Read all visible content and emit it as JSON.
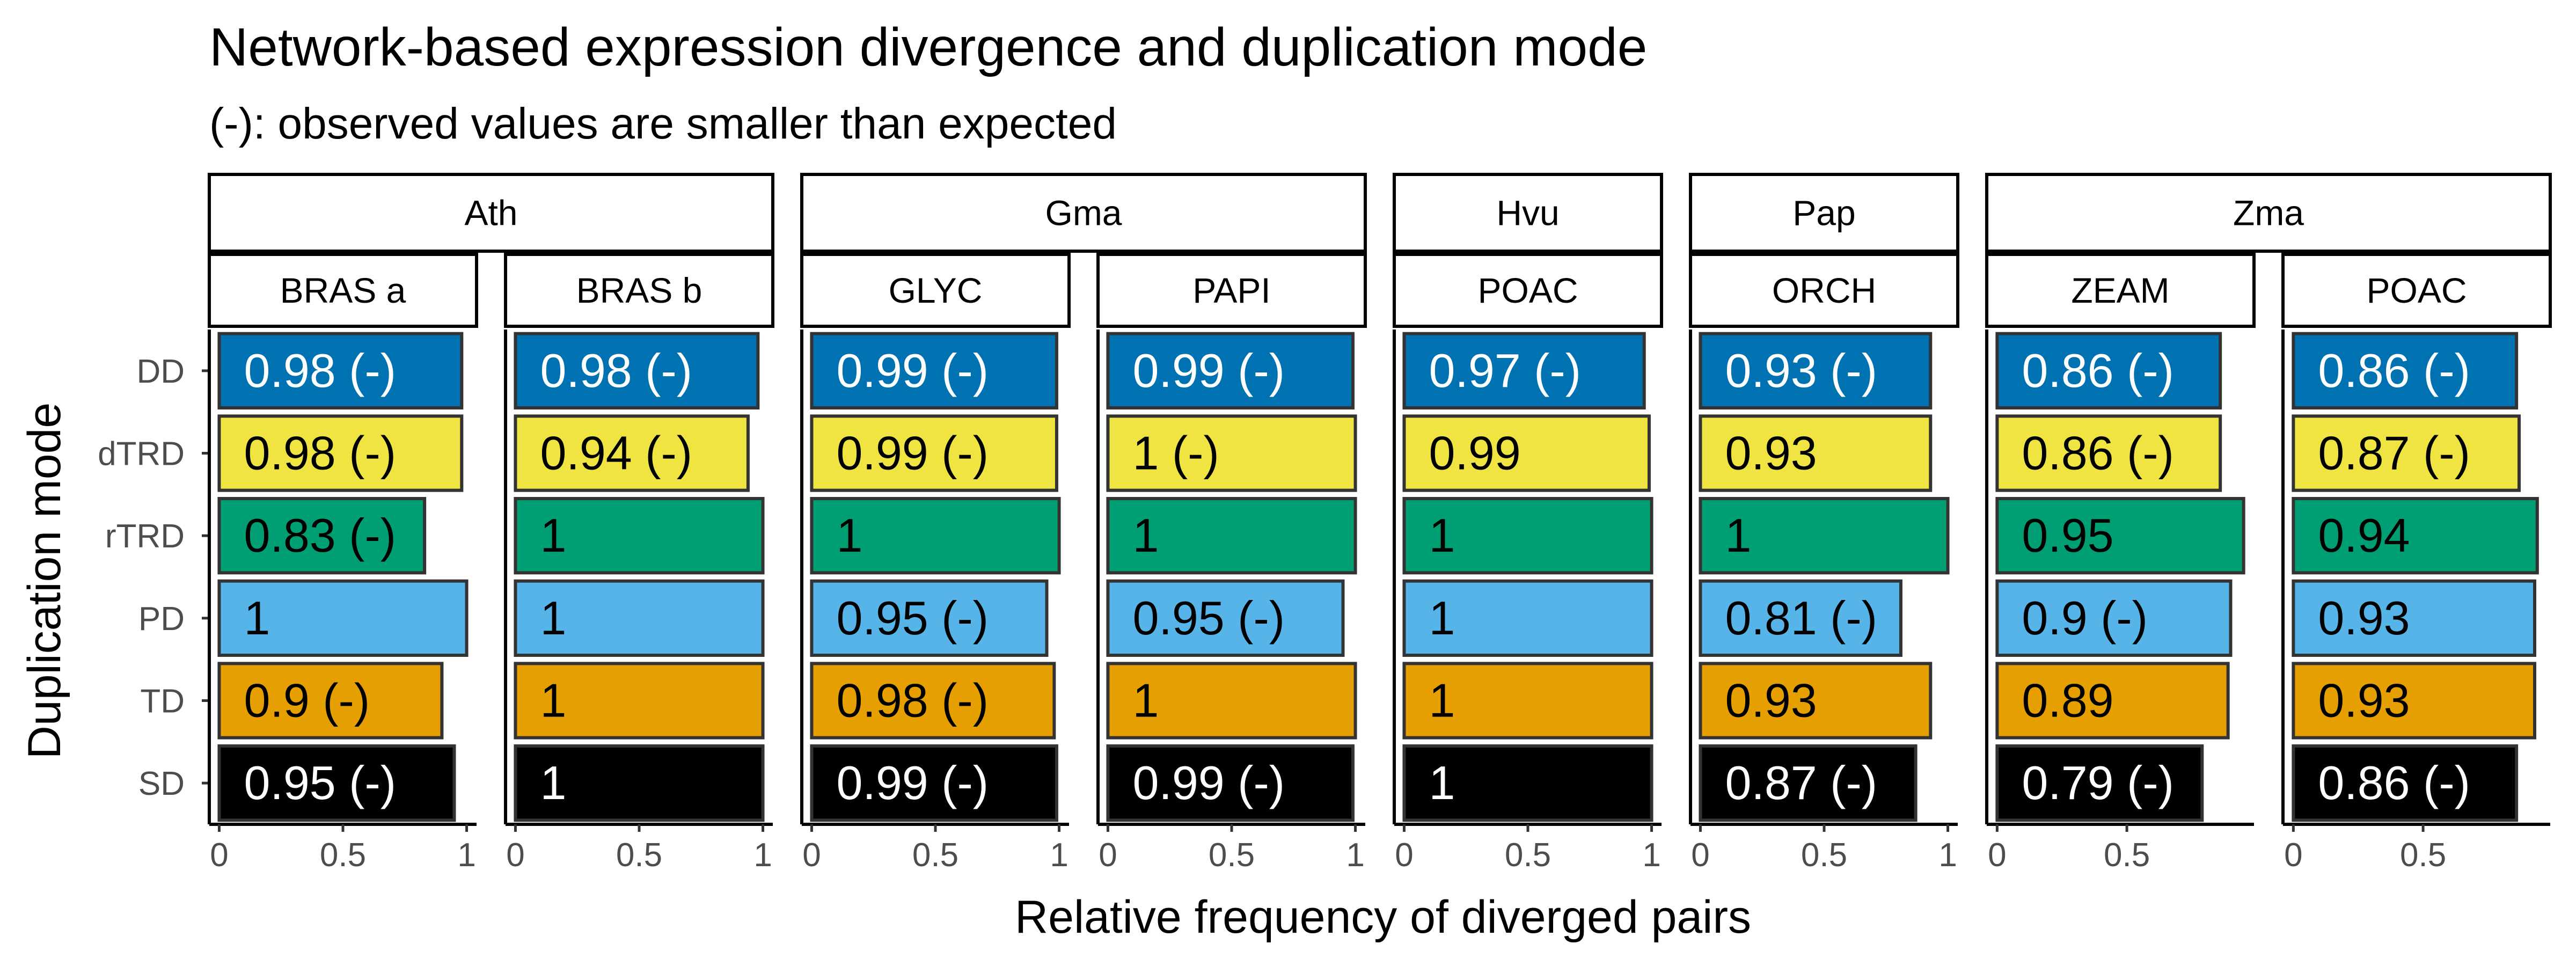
{
  "chart_data": {
    "type": "bar",
    "orientation": "horizontal",
    "title": "Network-based expression divergence and duplication mode",
    "subtitle": "(-): observed values are smaller than expected",
    "xlabel": "Relative frequency of diverged pairs",
    "ylabel": "Duplication mode",
    "categories": [
      "DD",
      "dTRD",
      "rTRD",
      "PD",
      "TD",
      "SD"
    ],
    "category_colors": {
      "DD": "#0072B2",
      "dTRD": "#F0E442",
      "rTRD": "#009E73",
      "PD": "#56B4E9",
      "TD": "#E69F00",
      "SD": "#000000"
    },
    "label_colors": {
      "DD": "#FFFFFF",
      "dTRD": "#000000",
      "rTRD": "#000000",
      "PD": "#000000",
      "TD": "#000000",
      "SD": "#FFFFFF"
    },
    "x_ticks": [
      0,
      0.5,
      1
    ],
    "x_tick_labels": [
      "0",
      "0.5",
      "1"
    ],
    "species": [
      {
        "name": "Ath",
        "groups": [
          "BRAS a",
          "BRAS b"
        ]
      },
      {
        "name": "Gma",
        "groups": [
          "GLYC",
          "PAPI"
        ]
      },
      {
        "name": "Hvu",
        "groups": [
          "POAC"
        ]
      },
      {
        "name": "Pap",
        "groups": [
          "ORCH"
        ]
      },
      {
        "name": "Zma",
        "groups": [
          "ZEAM",
          "POAC"
        ]
      }
    ],
    "panels": [
      {
        "species": "Ath",
        "group": "BRAS a",
        "xlim": [
          -0.04,
          1.04
        ],
        "values": [
          0.98,
          0.98,
          0.83,
          1,
          0.9,
          0.95
        ],
        "labels": [
          "0.98 (-)",
          "0.98 (-)",
          "0.83 (-)",
          "1",
          "0.9 (-)",
          "0.95 (-)"
        ]
      },
      {
        "species": "Ath",
        "group": "BRAS b",
        "xlim": [
          -0.04,
          1.04
        ],
        "values": [
          0.98,
          0.94,
          1,
          1,
          1,
          1
        ],
        "labels": [
          "0.98 (-)",
          "0.94 (-)",
          "1",
          "1",
          "1",
          "1"
        ]
      },
      {
        "species": "Gma",
        "group": "GLYC",
        "xlim": [
          -0.04,
          1.04
        ],
        "values": [
          0.99,
          0.99,
          1,
          0.95,
          0.98,
          0.99
        ],
        "labels": [
          "0.99 (-)",
          "0.99 (-)",
          "1",
          "0.95 (-)",
          "0.98 (-)",
          "0.99 (-)"
        ]
      },
      {
        "species": "Gma",
        "group": "PAPI",
        "xlim": [
          -0.04,
          1.04
        ],
        "values": [
          0.99,
          1,
          1,
          0.95,
          1,
          0.99
        ],
        "labels": [
          "0.99 (-)",
          "1 (-)",
          "1",
          "0.95 (-)",
          "1",
          "0.99 (-)"
        ]
      },
      {
        "species": "Hvu",
        "group": "POAC",
        "xlim": [
          -0.04,
          1.04
        ],
        "values": [
          0.97,
          0.99,
          1,
          1,
          1,
          1
        ],
        "labels": [
          "0.97 (-)",
          "0.99",
          "1",
          "1",
          "1",
          "1"
        ]
      },
      {
        "species": "Pap",
        "group": "ORCH",
        "xlim": [
          -0.04,
          1.04
        ],
        "values": [
          0.93,
          0.93,
          1,
          0.81,
          0.93,
          0.87
        ],
        "labels": [
          "0.93 (-)",
          "0.93",
          "1",
          "0.81 (-)",
          "0.93",
          "0.87 (-)"
        ]
      },
      {
        "species": "Zma",
        "group": "ZEAM",
        "xlim": [
          -0.04,
          0.99
        ],
        "values": [
          0.86,
          0.86,
          0.95,
          0.9,
          0.89,
          0.79
        ],
        "labels": [
          "0.86 (-)",
          "0.86 (-)",
          "0.95",
          "0.9 (-)",
          "0.89",
          "0.79 (-)"
        ]
      },
      {
        "species": "Zma",
        "group": "POAC",
        "xlim": [
          -0.04,
          0.99
        ],
        "values": [
          0.86,
          0.87,
          0.94,
          0.93,
          0.93,
          0.86
        ],
        "labels": [
          "0.86 (-)",
          "0.87 (-)",
          "0.94",
          "0.93",
          "0.93",
          "0.86 (-)"
        ]
      }
    ]
  }
}
